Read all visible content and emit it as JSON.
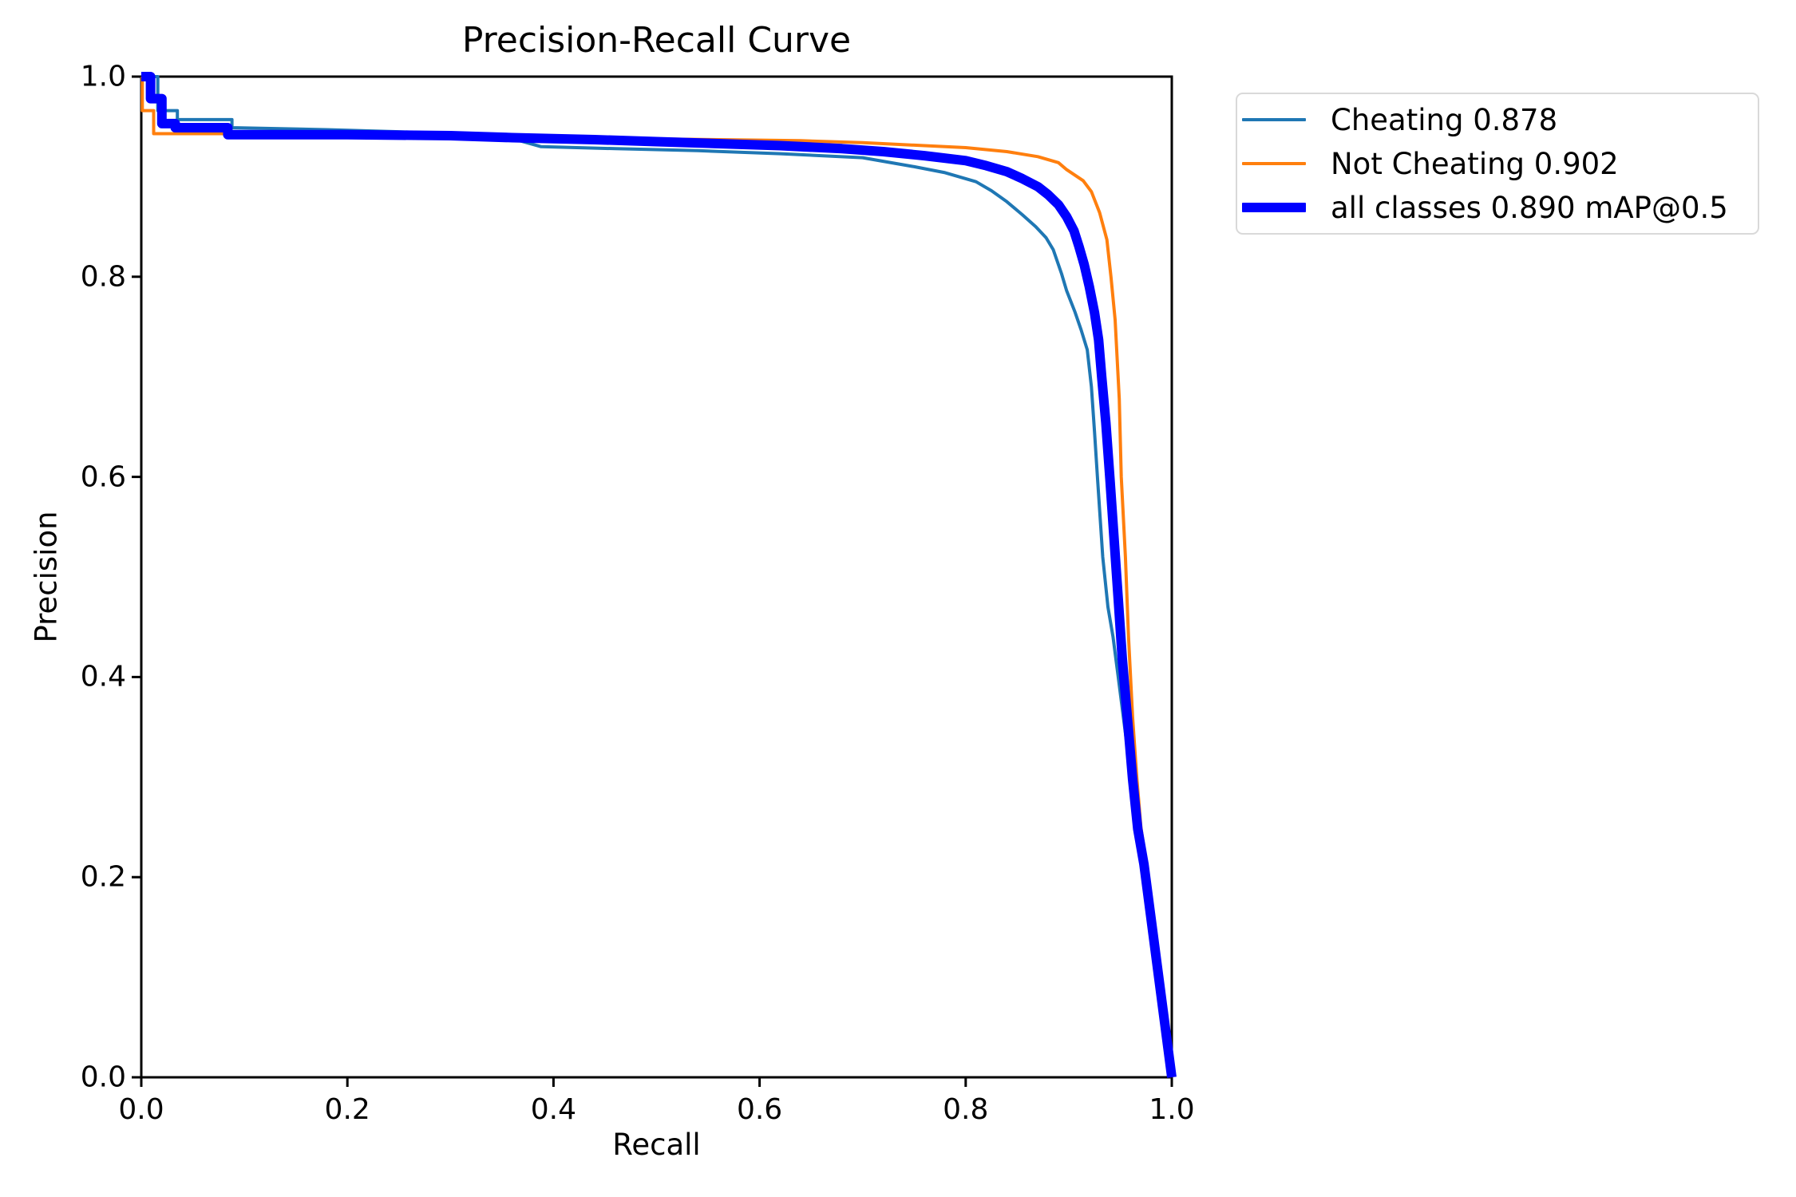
{
  "title": "Precision-Recall Curve",
  "chart_data": {
    "type": "line",
    "title": "Precision-Recall Curve",
    "xlabel": "Recall",
    "ylabel": "Precision",
    "xlim": [
      0.0,
      1.0
    ],
    "ylim": [
      0.0,
      1.0
    ],
    "grid": false,
    "legend_position": "outside-upper-right",
    "xticks": [
      "0.0",
      "0.2",
      "0.4",
      "0.6",
      "0.8",
      "1.0"
    ],
    "yticks": [
      "0.0",
      "0.2",
      "0.4",
      "0.6",
      "0.8",
      "1.0"
    ],
    "axis_color": "#000000",
    "background_color": "#ffffff",
    "series": [
      {
        "name": "Cheating 0.878",
        "color": "#1f77b4",
        "line_width": 4,
        "points": [
          [
            0.0,
            1.0
          ],
          [
            0.016,
            1.0
          ],
          [
            0.016,
            0.966
          ],
          [
            0.035,
            0.966
          ],
          [
            0.035,
            0.957
          ],
          [
            0.088,
            0.957
          ],
          [
            0.088,
            0.949
          ],
          [
            0.18,
            0.947
          ],
          [
            0.28,
            0.944
          ],
          [
            0.35,
            0.941
          ],
          [
            0.388,
            0.93
          ],
          [
            0.46,
            0.928
          ],
          [
            0.54,
            0.926
          ],
          [
            0.62,
            0.923
          ],
          [
            0.7,
            0.919
          ],
          [
            0.75,
            0.91
          ],
          [
            0.78,
            0.904
          ],
          [
            0.81,
            0.895
          ],
          [
            0.825,
            0.886
          ],
          [
            0.84,
            0.875
          ],
          [
            0.855,
            0.862
          ],
          [
            0.868,
            0.85
          ],
          [
            0.878,
            0.839
          ],
          [
            0.885,
            0.827
          ],
          [
            0.893,
            0.803
          ],
          [
            0.898,
            0.786
          ],
          [
            0.906,
            0.765
          ],
          [
            0.912,
            0.747
          ],
          [
            0.918,
            0.727
          ],
          [
            0.922,
            0.69
          ],
          [
            0.925,
            0.645
          ],
          [
            0.928,
            0.598
          ],
          [
            0.933,
            0.52
          ],
          [
            0.938,
            0.47
          ],
          [
            0.943,
            0.44
          ],
          [
            0.948,
            0.4
          ],
          [
            0.953,
            0.36
          ],
          [
            0.958,
            0.32
          ],
          [
            0.963,
            0.285
          ],
          [
            0.967,
            0.255
          ],
          [
            1.0,
            0.0
          ]
        ]
      },
      {
        "name": "Not Cheating 0.902",
        "color": "#ff7f0e",
        "line_width": 4,
        "points": [
          [
            0.0,
            1.0
          ],
          [
            0.001,
            1.0
          ],
          [
            0.001,
            0.966
          ],
          [
            0.012,
            0.966
          ],
          [
            0.012,
            0.943
          ],
          [
            0.1,
            0.943
          ],
          [
            0.2,
            0.942
          ],
          [
            0.3,
            0.941
          ],
          [
            0.4,
            0.94
          ],
          [
            0.48,
            0.938
          ],
          [
            0.56,
            0.937
          ],
          [
            0.64,
            0.936
          ],
          [
            0.7,
            0.934
          ],
          [
            0.76,
            0.931
          ],
          [
            0.8,
            0.929
          ],
          [
            0.84,
            0.925
          ],
          [
            0.87,
            0.92
          ],
          [
            0.89,
            0.914
          ],
          [
            0.898,
            0.907
          ],
          [
            0.914,
            0.896
          ],
          [
            0.922,
            0.885
          ],
          [
            0.93,
            0.864
          ],
          [
            0.937,
            0.837
          ],
          [
            0.941,
            0.8
          ],
          [
            0.945,
            0.757
          ],
          [
            0.949,
            0.678
          ],
          [
            0.951,
            0.6
          ],
          [
            0.955,
            0.52
          ],
          [
            0.958,
            0.44
          ],
          [
            0.962,
            0.36
          ],
          [
            0.966,
            0.3
          ],
          [
            0.97,
            0.25
          ],
          [
            0.975,
            0.215
          ],
          [
            1.0,
            0.0
          ]
        ]
      },
      {
        "name": "all classes 0.890 mAP@0.5",
        "color": "#0000ff",
        "line_width": 12,
        "points": [
          [
            0.0,
            1.0
          ],
          [
            0.009,
            1.0
          ],
          [
            0.009,
            0.978
          ],
          [
            0.02,
            0.978
          ],
          [
            0.02,
            0.953
          ],
          [
            0.033,
            0.953
          ],
          [
            0.033,
            0.949
          ],
          [
            0.084,
            0.949
          ],
          [
            0.084,
            0.942
          ],
          [
            0.2,
            0.942
          ],
          [
            0.3,
            0.941
          ],
          [
            0.36,
            0.939
          ],
          [
            0.44,
            0.937
          ],
          [
            0.5,
            0.935
          ],
          [
            0.56,
            0.933
          ],
          [
            0.62,
            0.931
          ],
          [
            0.68,
            0.928
          ],
          [
            0.72,
            0.925
          ],
          [
            0.76,
            0.921
          ],
          [
            0.8,
            0.916
          ],
          [
            0.82,
            0.911
          ],
          [
            0.84,
            0.905
          ],
          [
            0.855,
            0.898
          ],
          [
            0.87,
            0.89
          ],
          [
            0.88,
            0.882
          ],
          [
            0.89,
            0.872
          ],
          [
            0.898,
            0.86
          ],
          [
            0.905,
            0.846
          ],
          [
            0.91,
            0.83
          ],
          [
            0.915,
            0.812
          ],
          [
            0.92,
            0.79
          ],
          [
            0.925,
            0.764
          ],
          [
            0.929,
            0.737
          ],
          [
            0.932,
            0.7
          ],
          [
            0.936,
            0.654
          ],
          [
            0.94,
            0.598
          ],
          [
            0.944,
            0.538
          ],
          [
            0.948,
            0.478
          ],
          [
            0.952,
            0.418
          ],
          [
            0.957,
            0.358
          ],
          [
            0.962,
            0.298
          ],
          [
            0.967,
            0.248
          ],
          [
            0.973,
            0.213
          ],
          [
            1.0,
            0.0
          ]
        ]
      }
    ]
  }
}
